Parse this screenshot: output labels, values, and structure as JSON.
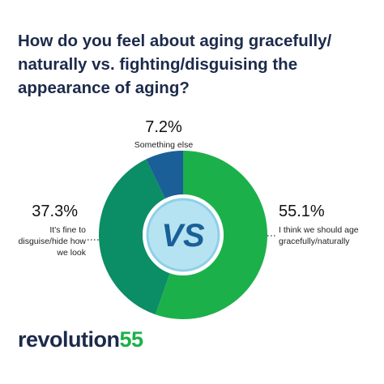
{
  "chart_data": {
    "type": "pie",
    "title": "How do you feel about aging gracefully/ naturally vs. fighting/disguising the appearance of aging?",
    "categories": [
      "I think we should age gracefully/naturally",
      "It's fine to disguise/hide how we look",
      "Something else"
    ],
    "values": [
      55.1,
      37.3,
      7.2
    ],
    "value_labels": [
      "55.1%",
      "37.3%",
      "7.2%"
    ],
    "colors": [
      "#1cb04b",
      "#0b8d66",
      "#1a5f97"
    ],
    "center_label": "VS"
  },
  "logo": {
    "text": "revolution",
    "number": "55"
  }
}
